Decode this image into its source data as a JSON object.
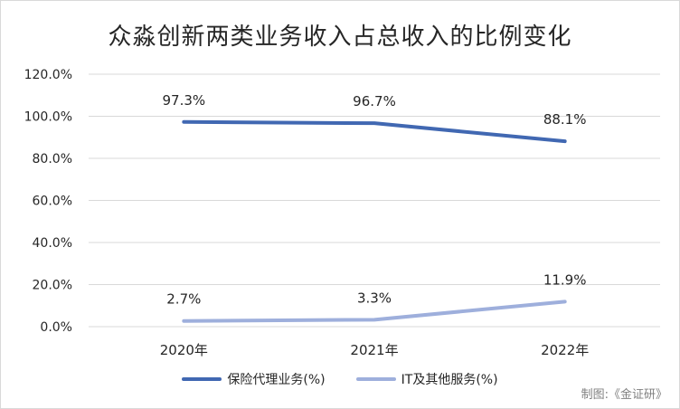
{
  "chart_data": {
    "type": "line",
    "title": "众淼创新两类业务收入占总收入的比例变化",
    "categories": [
      "2020年",
      "2021年",
      "2022年"
    ],
    "yticks": [
      "0.0%",
      "20.0%",
      "40.0%",
      "60.0%",
      "80.0%",
      "100.0%",
      "120.0%"
    ],
    "ylim": [
      0,
      120
    ],
    "grid": true,
    "legend_position": "bottom",
    "series": [
      {
        "name": "保险代理业务(%)",
        "values": [
          97.3,
          96.7,
          88.1
        ],
        "labels": [
          "97.3%",
          "96.7%",
          "88.1%"
        ],
        "color": "#4168b2"
      },
      {
        "name": "IT及其他服务(%)",
        "values": [
          2.7,
          3.3,
          11.9
        ],
        "labels": [
          "2.7%",
          "3.3%",
          "11.9%"
        ],
        "color": "#9eafdc"
      }
    ]
  },
  "credit": "制图:《金证研》"
}
